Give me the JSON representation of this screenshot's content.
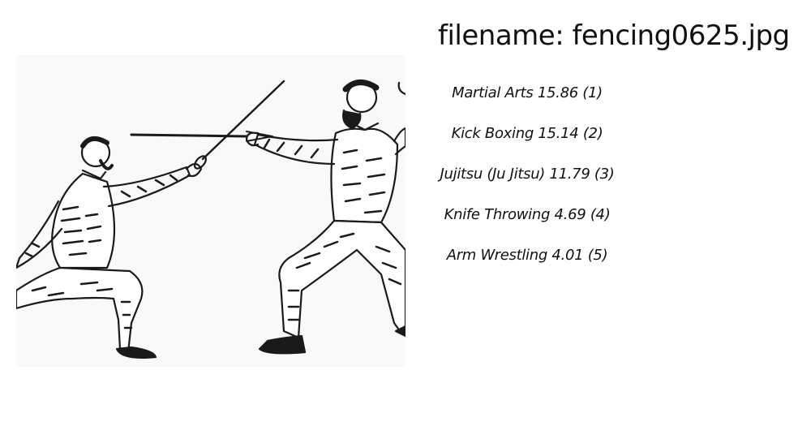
{
  "filename_label": "filename: fencing0625.jpg",
  "image": {
    "alt": "Engraving of two fencers crossing swords",
    "subject": "fencing-illustration"
  },
  "predictions": [
    {
      "text": "Martial Arts 15.86 (1)"
    },
    {
      "text": "Kick Boxing 15.14 (2)"
    },
    {
      "text": "Jujitsu (Ju Jitsu) 11.79 (3)"
    },
    {
      "text": "Knife Throwing  4.69 (4)"
    },
    {
      "text": "Arm Wrestling  4.01 (5)"
    }
  ]
}
